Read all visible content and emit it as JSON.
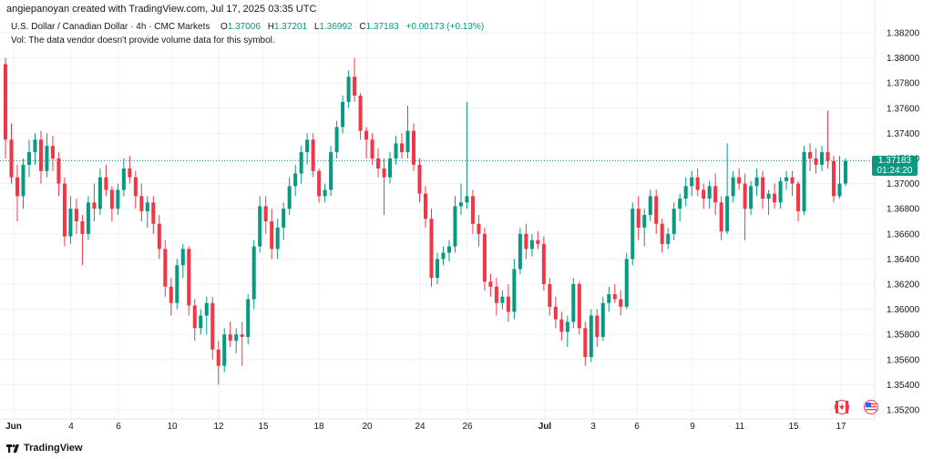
{
  "header": {
    "author_line": "angiepanoyan created with TradingView.com, Jul 17, 2025 03:35 UTC"
  },
  "legend": {
    "symbol": "U.S. Dollar / Canadian Dollar · 4h · CMC Markets",
    "o_label": "O",
    "o_value": "1.37006",
    "h_label": "H",
    "h_value": "1.37201",
    "l_label": "L",
    "l_value": "1.36992",
    "c_label": "C",
    "c_value": "1.37183",
    "change": "+0.00173 (+0.13%)",
    "vol_note": "Vol: The data vendor doesn't provide volume data for this symbol."
  },
  "last_price": {
    "price": "1.37183",
    "countdown": "01:24:20",
    "color": "#089981"
  },
  "footer": {
    "brand": "TradingView"
  },
  "colors": {
    "up": "#089981",
    "down": "#f23645",
    "grid": "#eef0f3"
  },
  "event_icons": [
    "canada-flag-event-icon",
    "us-flag-event-icon"
  ],
  "chart_data": {
    "type": "candlestick",
    "price_axis_labels": [
      "1.38200",
      "1.38000",
      "1.37800",
      "1.37600",
      "1.37400",
      "1.37200",
      "1.37000",
      "1.36800",
      "1.36600",
      "1.36400",
      "1.36200",
      "1.36000",
      "1.35800",
      "1.35600",
      "1.35400",
      "1.35200"
    ],
    "ylim": [
      1.3515,
      1.3825
    ],
    "time_axis_labels": [
      "Jun",
      "4",
      "6",
      "10",
      "12",
      "15",
      "18",
      "20",
      "24",
      "26",
      "Jul",
      "3",
      "6",
      "9",
      "11",
      "15",
      "17"
    ],
    "last_close": 1.37183,
    "ohlc": [
      [
        1.3795,
        1.38,
        1.372,
        1.3735
      ],
      [
        1.3735,
        1.3748,
        1.37,
        1.3705
      ],
      [
        1.3705,
        1.3715,
        1.367,
        1.369
      ],
      [
        1.369,
        1.372,
        1.368,
        1.3715
      ],
      [
        1.3715,
        1.3735,
        1.3705,
        1.3725
      ],
      [
        1.3725,
        1.374,
        1.3715,
        1.3735
      ],
      [
        1.3735,
        1.3742,
        1.37,
        1.371
      ],
      [
        1.371,
        1.374,
        1.3705,
        1.373
      ],
      [
        1.373,
        1.3738,
        1.371,
        1.372
      ],
      [
        1.372,
        1.3725,
        1.369,
        1.37
      ],
      [
        1.37,
        1.3705,
        1.365,
        1.3658
      ],
      [
        1.3658,
        1.369,
        1.3652,
        1.368
      ],
      [
        1.368,
        1.3688,
        1.366,
        1.367
      ],
      [
        1.367,
        1.3675,
        1.3635,
        1.366
      ],
      [
        1.366,
        1.369,
        1.3655,
        1.3685
      ],
      [
        1.3685,
        1.37,
        1.367,
        1.368
      ],
      [
        1.368,
        1.3712,
        1.3675,
        1.3705
      ],
      [
        1.3705,
        1.3715,
        1.369,
        1.3695
      ],
      [
        1.3695,
        1.3698,
        1.367,
        1.368
      ],
      [
        1.368,
        1.37,
        1.3675,
        1.3695
      ],
      [
        1.3695,
        1.372,
        1.369,
        1.3712
      ],
      [
        1.3712,
        1.3722,
        1.37,
        1.3705
      ],
      [
        1.3705,
        1.371,
        1.368,
        1.369
      ],
      [
        1.369,
        1.37,
        1.367,
        1.3678
      ],
      [
        1.3678,
        1.369,
        1.3665,
        1.3685
      ],
      [
        1.3685,
        1.369,
        1.366,
        1.3668
      ],
      [
        1.3668,
        1.3675,
        1.364,
        1.3648
      ],
      [
        1.3648,
        1.3655,
        1.361,
        1.3618
      ],
      [
        1.3618,
        1.3625,
        1.3595,
        1.3605
      ],
      [
        1.3605,
        1.364,
        1.36,
        1.3635
      ],
      [
        1.3635,
        1.3652,
        1.3625,
        1.3648
      ],
      [
        1.3648,
        1.365,
        1.3595,
        1.3603
      ],
      [
        1.3603,
        1.3608,
        1.3575,
        1.3585
      ],
      [
        1.3585,
        1.36,
        1.358,
        1.3595
      ],
      [
        1.3595,
        1.361,
        1.358,
        1.3605
      ],
      [
        1.3605,
        1.361,
        1.356,
        1.3568
      ],
      [
        1.3568,
        1.3575,
        1.354,
        1.3555
      ],
      [
        1.3555,
        1.3585,
        1.355,
        1.358
      ],
      [
        1.358,
        1.359,
        1.357,
        1.3575
      ],
      [
        1.3575,
        1.3585,
        1.3565,
        1.358
      ],
      [
        1.358,
        1.359,
        1.3555,
        1.3578
      ],
      [
        1.3578,
        1.3612,
        1.3572,
        1.3608
      ],
      [
        1.3608,
        1.3655,
        1.36,
        1.365
      ],
      [
        1.365,
        1.369,
        1.3645,
        1.3682
      ],
      [
        1.3682,
        1.369,
        1.366,
        1.367
      ],
      [
        1.367,
        1.368,
        1.364,
        1.3648
      ],
      [
        1.3648,
        1.3672,
        1.364,
        1.3665
      ],
      [
        1.3665,
        1.3685,
        1.3655,
        1.368
      ],
      [
        1.368,
        1.3705,
        1.3675,
        1.3698
      ],
      [
        1.3698,
        1.3715,
        1.369,
        1.3708
      ],
      [
        1.3708,
        1.373,
        1.37,
        1.3725
      ],
      [
        1.3725,
        1.374,
        1.3715,
        1.3735
      ],
      [
        1.3735,
        1.374,
        1.3705,
        1.371
      ],
      [
        1.371,
        1.3712,
        1.3685,
        1.369
      ],
      [
        1.369,
        1.37,
        1.3685,
        1.3695
      ],
      [
        1.3695,
        1.373,
        1.369,
        1.3725
      ],
      [
        1.3725,
        1.375,
        1.372,
        1.3745
      ],
      [
        1.3745,
        1.377,
        1.374,
        1.3765
      ],
      [
        1.3765,
        1.379,
        1.376,
        1.3785
      ],
      [
        1.3785,
        1.38,
        1.3765,
        1.377
      ],
      [
        1.377,
        1.3772,
        1.3735,
        1.3742
      ],
      [
        1.3742,
        1.3745,
        1.372,
        1.3735
      ],
      [
        1.3735,
        1.374,
        1.3715,
        1.372
      ],
      [
        1.372,
        1.3728,
        1.3705,
        1.3712
      ],
      [
        1.3712,
        1.372,
        1.3675,
        1.3705
      ],
      [
        1.3705,
        1.3725,
        1.37,
        1.372
      ],
      [
        1.372,
        1.3738,
        1.3715,
        1.3732
      ],
      [
        1.3732,
        1.374,
        1.372,
        1.3725
      ],
      [
        1.3725,
        1.3762,
        1.372,
        1.3742
      ],
      [
        1.3742,
        1.3748,
        1.371,
        1.3715
      ],
      [
        1.3715,
        1.372,
        1.3685,
        1.3692
      ],
      [
        1.3692,
        1.3698,
        1.3665,
        1.3672
      ],
      [
        1.3672,
        1.368,
        1.3618,
        1.3625
      ],
      [
        1.3625,
        1.3645,
        1.362,
        1.364
      ],
      [
        1.364,
        1.365,
        1.3635,
        1.3645
      ],
      [
        1.3645,
        1.3655,
        1.3638,
        1.365
      ],
      [
        1.365,
        1.369,
        1.3645,
        1.3682
      ],
      [
        1.3682,
        1.37,
        1.3675,
        1.3685
      ],
      [
        1.3685,
        1.3765,
        1.368,
        1.369
      ],
      [
        1.369,
        1.3695,
        1.366,
        1.3668
      ],
      [
        1.3668,
        1.3675,
        1.365,
        1.366
      ],
      [
        1.366,
        1.3665,
        1.3615,
        1.3622
      ],
      [
        1.3622,
        1.3628,
        1.361,
        1.3618
      ],
      [
        1.3618,
        1.3625,
        1.3595,
        1.3605
      ],
      [
        1.3605,
        1.3615,
        1.36,
        1.361
      ],
      [
        1.361,
        1.362,
        1.359,
        1.3598
      ],
      [
        1.3598,
        1.364,
        1.3592,
        1.3632
      ],
      [
        1.3632,
        1.3665,
        1.3628,
        1.366
      ],
      [
        1.366,
        1.3668,
        1.364,
        1.3648
      ],
      [
        1.3648,
        1.366,
        1.3642,
        1.3655
      ],
      [
        1.3655,
        1.3662,
        1.3648,
        1.3652
      ],
      [
        1.3652,
        1.3658,
        1.3615,
        1.362
      ],
      [
        1.362,
        1.3625,
        1.3595,
        1.3602
      ],
      [
        1.3602,
        1.361,
        1.3585,
        1.3592
      ],
      [
        1.3592,
        1.3598,
        1.3575,
        1.3582
      ],
      [
        1.3582,
        1.3595,
        1.357,
        1.359
      ],
      [
        1.359,
        1.3625,
        1.3585,
        1.362
      ],
      [
        1.362,
        1.3622,
        1.358,
        1.3585
      ],
      [
        1.3585,
        1.359,
        1.3555,
        1.3562
      ],
      [
        1.3562,
        1.36,
        1.3558,
        1.3595
      ],
      [
        1.3595,
        1.36,
        1.357,
        1.3578
      ],
      [
        1.3578,
        1.361,
        1.3575,
        1.3605
      ],
      [
        1.3605,
        1.3618,
        1.3598,
        1.3612
      ],
      [
        1.3612,
        1.362,
        1.3605,
        1.3608
      ],
      [
        1.3608,
        1.3615,
        1.3595,
        1.3602
      ],
      [
        1.3602,
        1.3645,
        1.36,
        1.364
      ],
      [
        1.364,
        1.3685,
        1.3635,
        1.368
      ],
      [
        1.368,
        1.369,
        1.3655,
        1.3665
      ],
      [
        1.3665,
        1.368,
        1.365,
        1.3675
      ],
      [
        1.3675,
        1.3695,
        1.367,
        1.369
      ],
      [
        1.369,
        1.3695,
        1.366,
        1.3668
      ],
      [
        1.3668,
        1.3672,
        1.3645,
        1.3652
      ],
      [
        1.3652,
        1.3665,
        1.3648,
        1.366
      ],
      [
        1.366,
        1.3685,
        1.3655,
        1.368
      ],
      [
        1.368,
        1.3692,
        1.367,
        1.3688
      ],
      [
        1.3688,
        1.3705,
        1.3682,
        1.3698
      ],
      [
        1.3698,
        1.371,
        1.369,
        1.3705
      ],
      [
        1.3705,
        1.3712,
        1.369,
        1.3695
      ],
      [
        1.3695,
        1.37,
        1.368,
        1.3688
      ],
      [
        1.3688,
        1.3702,
        1.368,
        1.3698
      ],
      [
        1.3698,
        1.3708,
        1.3675,
        1.3685
      ],
      [
        1.3685,
        1.369,
        1.3655,
        1.3662
      ],
      [
        1.3662,
        1.3732,
        1.366,
        1.369
      ],
      [
        1.369,
        1.371,
        1.3685,
        1.3705
      ],
      [
        1.3705,
        1.3712,
        1.3695,
        1.37
      ],
      [
        1.37,
        1.3708,
        1.3655,
        1.368
      ],
      [
        1.368,
        1.3702,
        1.3675,
        1.3698
      ],
      [
        1.3698,
        1.3712,
        1.369,
        1.3705
      ],
      [
        1.3705,
        1.371,
        1.368,
        1.3688
      ],
      [
        1.3688,
        1.3695,
        1.3675,
        1.3692
      ],
      [
        1.3692,
        1.37,
        1.368,
        1.3685
      ],
      [
        1.3685,
        1.3705,
        1.368,
        1.3702
      ],
      [
        1.3702,
        1.371,
        1.3695,
        1.3705
      ],
      [
        1.3705,
        1.371,
        1.369,
        1.37
      ],
      [
        1.37,
        1.3702,
        1.367,
        1.3678
      ],
      [
        1.3678,
        1.373,
        1.3675,
        1.3725
      ],
      [
        1.3725,
        1.3732,
        1.371,
        1.372
      ],
      [
        1.372,
        1.3728,
        1.3708,
        1.3715
      ],
      [
        1.3715,
        1.373,
        1.371,
        1.3725
      ],
      [
        1.3725,
        1.3758,
        1.3712,
        1.3718
      ],
      [
        1.3718,
        1.3722,
        1.3685,
        1.369
      ],
      [
        1.369,
        1.3722,
        1.3688,
        1.37
      ],
      [
        1.37,
        1.372,
        1.3698,
        1.3718
      ]
    ]
  }
}
